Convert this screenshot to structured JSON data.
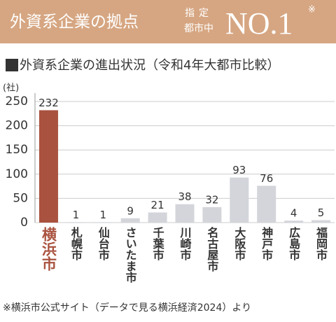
{
  "banner": {
    "title": "外資系企業の拠点",
    "qualifier_line1": "指定",
    "qualifier_line2": "都市中",
    "rank": "NO.1",
    "mark": "※"
  },
  "chart_data": {
    "type": "bar",
    "title": "外資系企業の進出状況（令和4年大都市比較）",
    "y_label": "(社)",
    "categories": [
      "横浜市",
      "札幌市",
      "仙台市",
      "さいたま市",
      "千葉市",
      "川崎市",
      "名古屋市",
      "大阪市",
      "神戸市",
      "広島市",
      "福岡市"
    ],
    "values": [
      232,
      1,
      1,
      9,
      21,
      38,
      32,
      93,
      76,
      4,
      5
    ],
    "colors": [
      "#a9523f",
      "#d3d5da",
      "#d3d5da",
      "#d3d5da",
      "#d3d5da",
      "#d3d5da",
      "#d3d5da",
      "#d3d5da",
      "#d3d5da",
      "#d3d5da",
      "#d3d5da"
    ],
    "ylim": [
      0,
      250
    ],
    "yticks": [
      0,
      50,
      100,
      150,
      200,
      250
    ],
    "grid": true
  },
  "footnote": "※横浜市公式サイト（データで見る横浜経済2024）より"
}
